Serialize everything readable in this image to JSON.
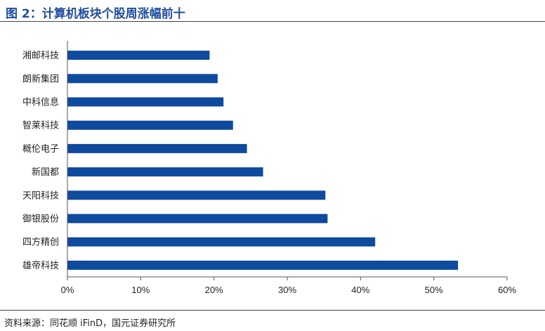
{
  "figure": {
    "title": "图 2：计算机板块个股周涨幅前十",
    "source": "资料来源：同花顺 iFinD，国元证券研究所"
  },
  "colors": {
    "bar": "#0e4a9e",
    "title": "#1f4e9c",
    "axis": "#555555"
  },
  "chart_data": {
    "type": "bar",
    "orientation": "horizontal",
    "title": "",
    "xlabel": "",
    "ylabel": "",
    "categories": [
      "湘邮科技",
      "朗新集团",
      "中科信息",
      "智莱科技",
      "概伦电子",
      "新国都",
      "天阳科技",
      "御银股份",
      "四方精创",
      "雄帝科技"
    ],
    "values": [
      19.4,
      20.5,
      21.3,
      22.6,
      24.5,
      26.7,
      35.2,
      35.5,
      42.0,
      53.3
    ],
    "xlim": [
      0,
      60
    ],
    "xticks": [
      "0%",
      "10%",
      "20%",
      "30%",
      "40%",
      "50%",
      "60%"
    ],
    "grid": false,
    "legend": "none"
  }
}
